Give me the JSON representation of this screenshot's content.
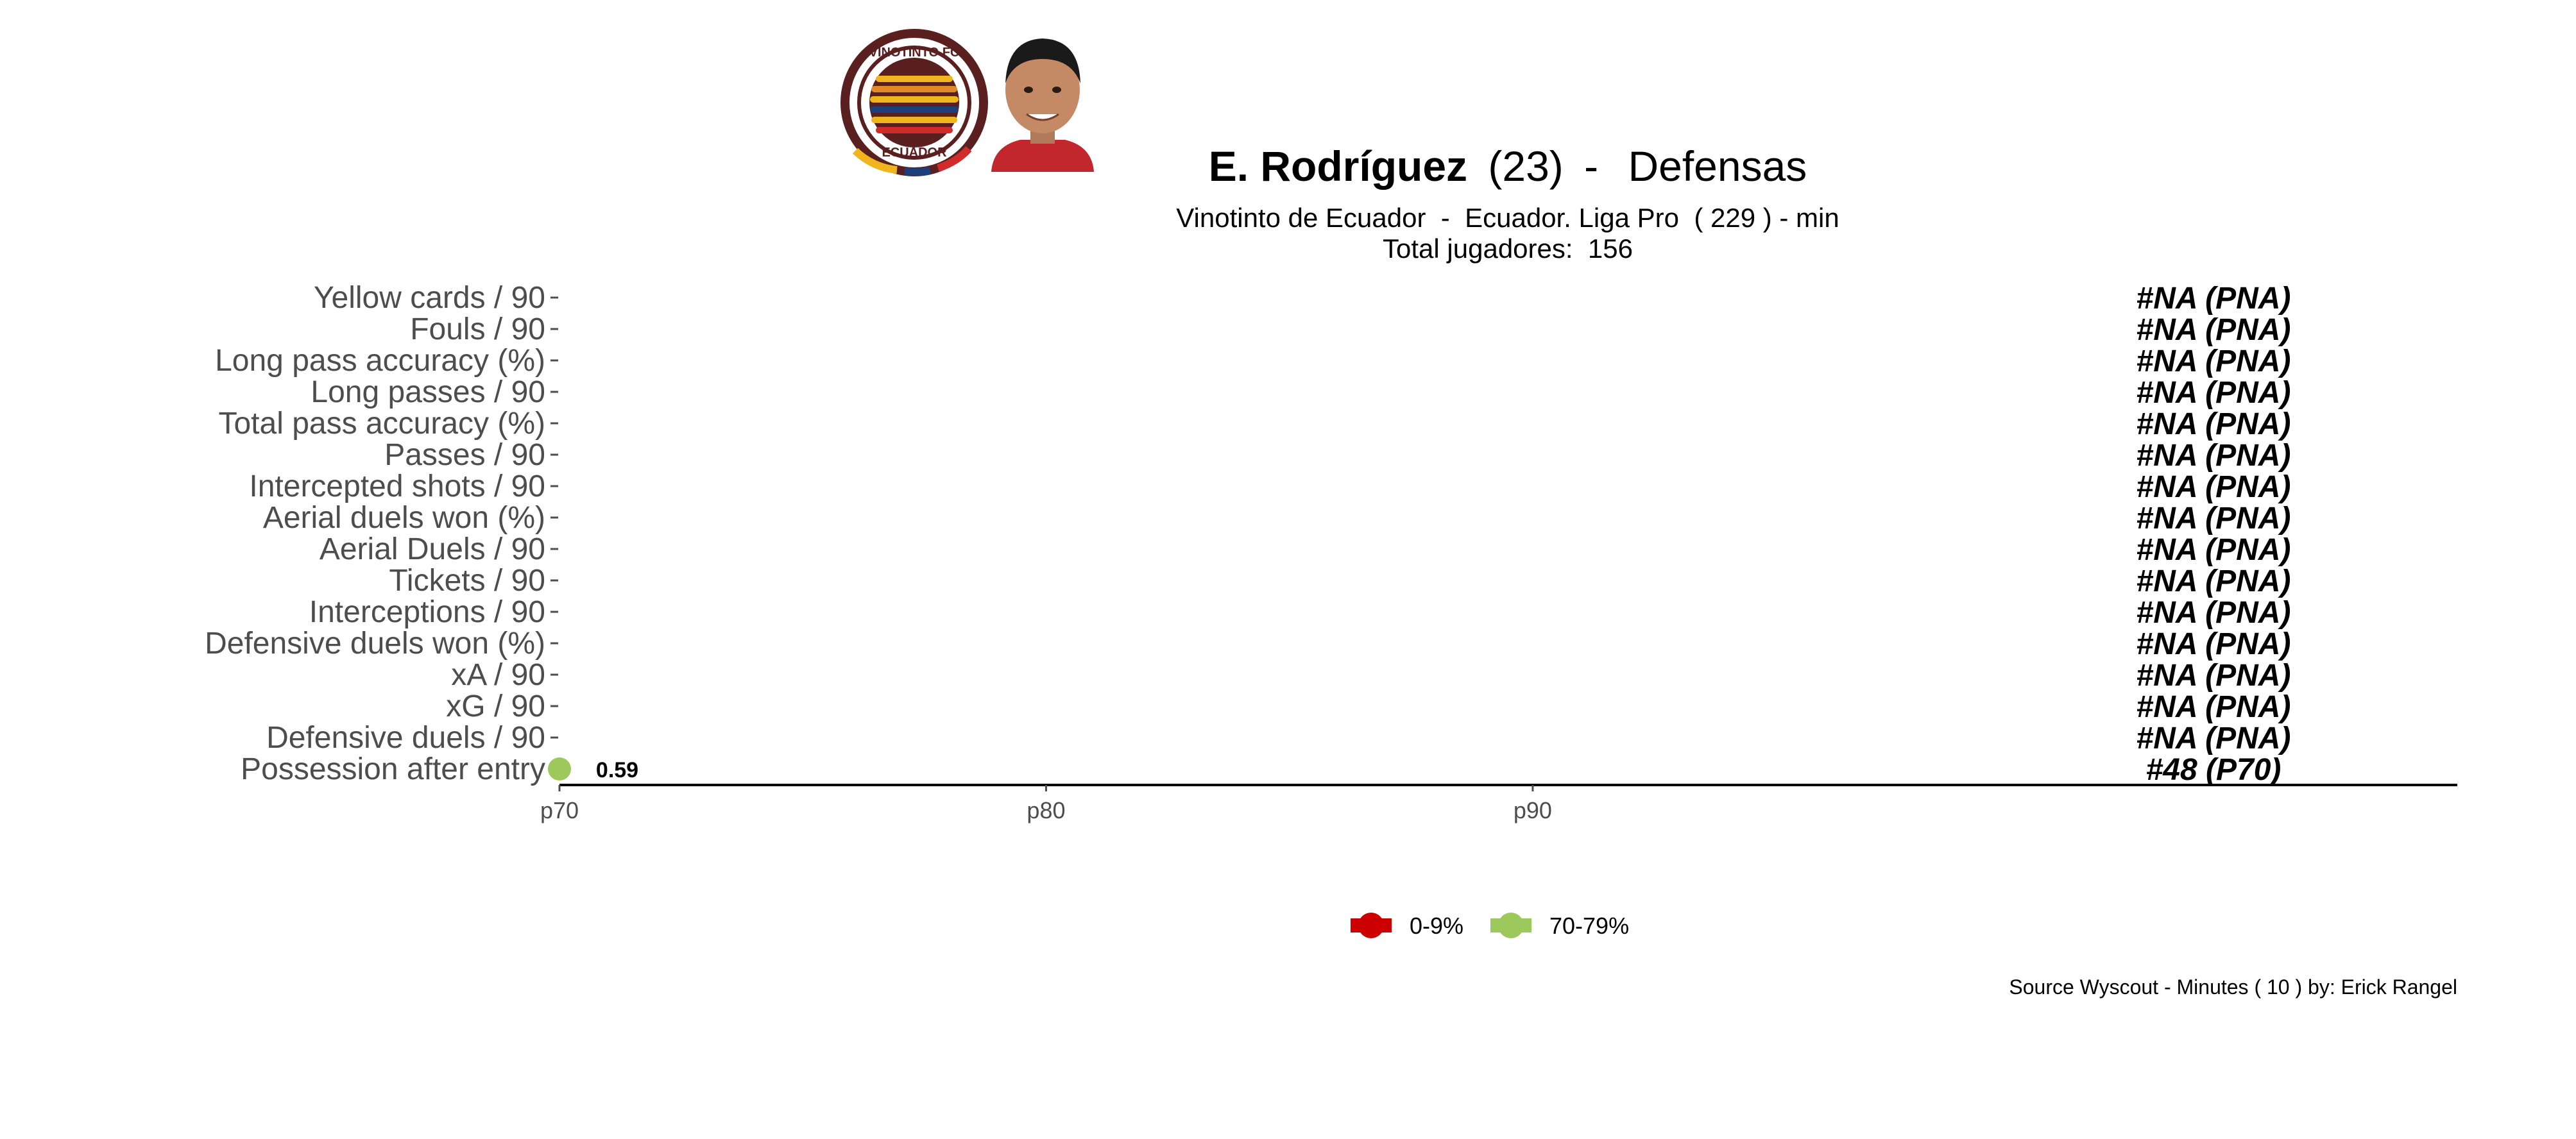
{
  "header": {
    "player_name": "E. Rodríguez",
    "player_age": "(23)",
    "separator": "-",
    "position": "Defensas",
    "subtitle_line1": "Vinotinto de Ecuador  -  Ecuador. Liga Pro  ( 229 ) - min",
    "subtitle_line2": "Total jugadores:  156",
    "club_logo": {
      "icon": "club-crest-icon",
      "ring_text_top": "VINOTINTO FC",
      "ring_text_bottom": "ECUADOR"
    },
    "player_photo": {
      "icon": "player-photo"
    }
  },
  "caption": "Source Wyscout - Minutes ( 10 ) by: Erick Rangel",
  "colors": {
    "low": "#cc0000",
    "mid": "#9dc85b",
    "axis": "#000000",
    "label": "#4d4d4d",
    "logo_primary": "#5a1f1f",
    "logo_gold": "#f0b41e",
    "logo_blue": "#1d3e7a",
    "logo_red": "#d12b2b",
    "jersey": "#c1272d"
  },
  "chart_data": {
    "type": "scatter",
    "orientation": "horizontal",
    "categories": [
      "Yellow cards / 90",
      "Fouls / 90",
      "Long pass accuracy (%)",
      "Long passes / 90",
      "Total pass accuracy (%)",
      "Passes / 90",
      "Intercepted shots / 90",
      "Aerial duels won (%)",
      "Aerial Duels / 90",
      "Tickets / 90",
      "Interceptions / 90",
      "Defensive duels won (%)",
      "xA / 90",
      "xG / 90",
      "Defensive duels / 90",
      "Possession after entry"
    ],
    "percentiles": [
      null,
      null,
      null,
      null,
      null,
      null,
      null,
      null,
      null,
      null,
      null,
      null,
      null,
      null,
      null,
      70
    ],
    "value_labels": [
      "",
      "",
      "",
      "",
      "",
      "",
      "",
      "",
      "",
      "",
      "",
      "",
      "",
      "",
      "",
      "0.59"
    ],
    "rank_labels": [
      "#NA (PNA)",
      "#NA (PNA)",
      "#NA (PNA)",
      "#NA (PNA)",
      "#NA (PNA)",
      "#NA (PNA)",
      "#NA (PNA)",
      "#NA (PNA)",
      "#NA (PNA)",
      "#NA (PNA)",
      "#NA (PNA)",
      "#NA (PNA)",
      "#NA (PNA)",
      "#NA (PNA)",
      "#NA (PNA)",
      "#48 (P70)"
    ],
    "point_color_key": [
      "",
      "",
      "",
      "",
      "",
      "",
      "",
      "",
      "",
      "",
      "",
      "",
      "",
      "",
      "",
      "70-79%"
    ],
    "x_ticks": [
      "p70",
      "p80",
      "p90"
    ],
    "x_tick_values": [
      70,
      80,
      90
    ],
    "xlim": [
      70,
      109
    ],
    "legend": {
      "position": "bottom",
      "entries": [
        {
          "label": "0-9%",
          "color": "#cc0000"
        },
        {
          "label": "70-79%",
          "color": "#9dc85b"
        }
      ]
    }
  }
}
